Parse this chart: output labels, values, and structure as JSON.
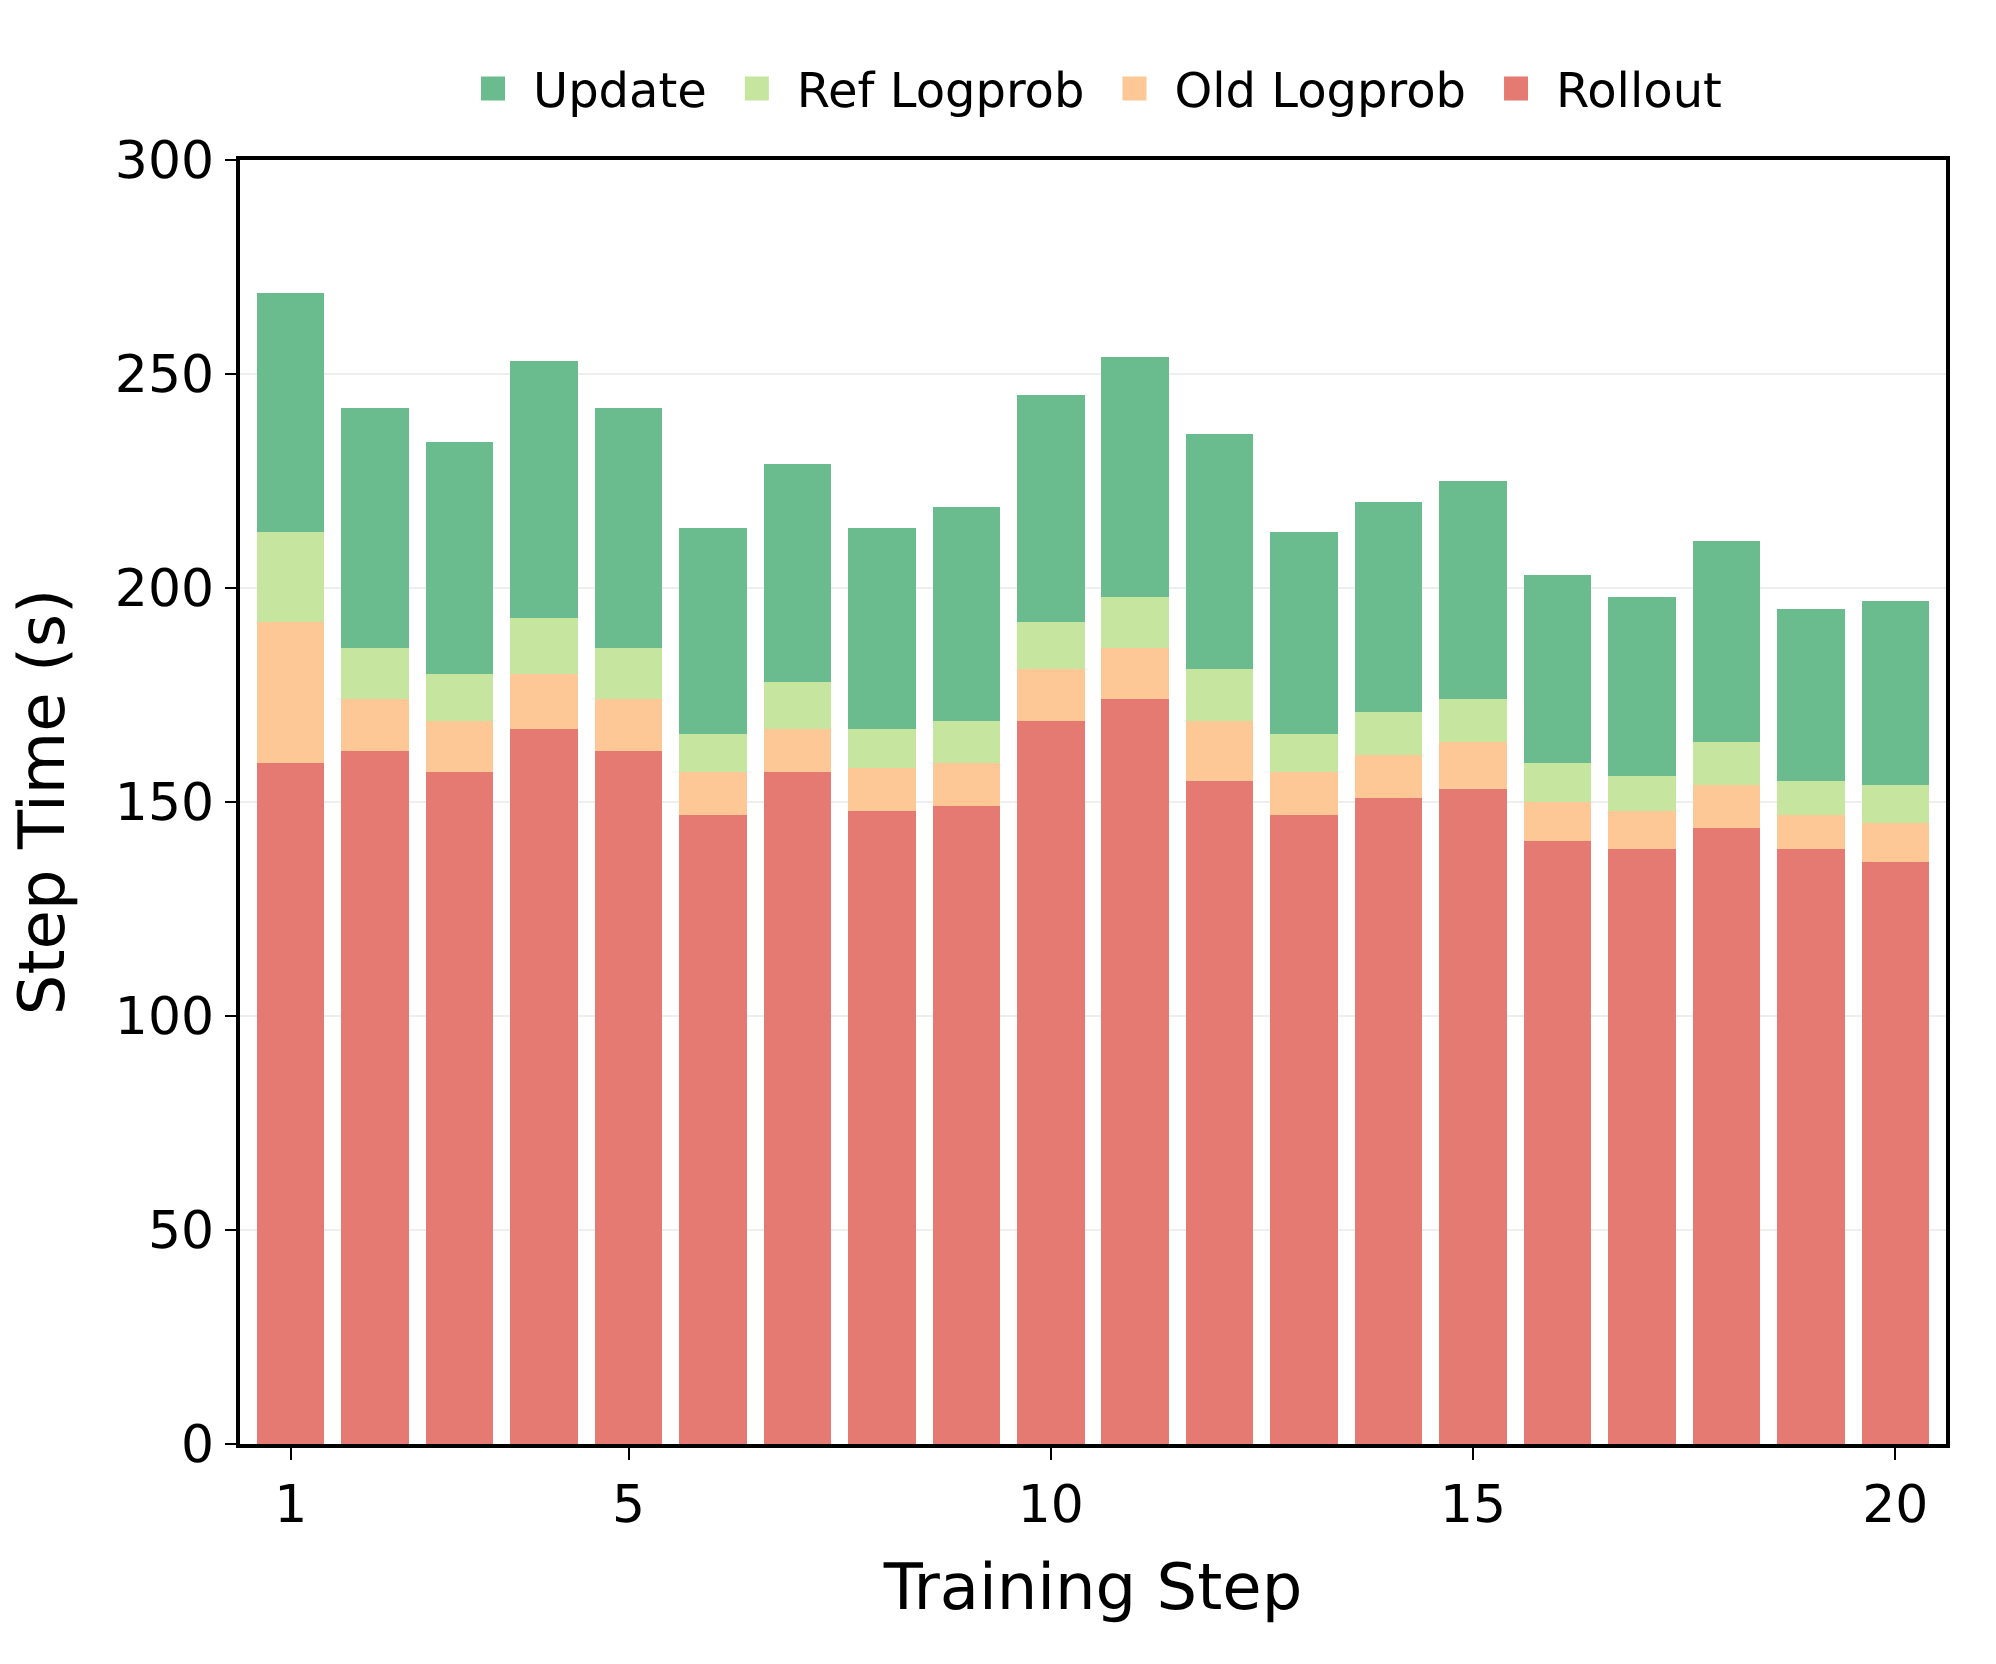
{
  "chart_data": {
    "type": "bar",
    "stacked": true,
    "xlabel": "Training Step",
    "ylabel": "Step Time (s)",
    "x": [
      1,
      2,
      3,
      4,
      5,
      6,
      7,
      8,
      9,
      10,
      11,
      12,
      13,
      14,
      15,
      16,
      17,
      18,
      19,
      20
    ],
    "xlim": [
      0.4,
      20.6
    ],
    "xticks": [
      1,
      5,
      10,
      15,
      20
    ],
    "ylim": [
      0,
      300
    ],
    "yticks": [
      0,
      50,
      100,
      150,
      200,
      250,
      300
    ],
    "grid": "y",
    "legend": "top",
    "series": [
      {
        "name": "Rollout",
        "color": "#e47a72",
        "values": [
          159,
          162,
          157,
          167,
          162,
          147,
          157,
          148,
          149,
          169,
          174,
          155,
          147,
          151,
          153,
          141,
          139,
          144,
          139,
          136
        ]
      },
      {
        "name": "Old Logprob",
        "color": "#fdc895",
        "values": [
          33,
          12,
          12,
          13,
          12,
          10,
          10,
          10,
          10,
          12,
          12,
          14,
          10,
          10,
          11,
          9,
          9,
          10,
          8,
          9
        ]
      },
      {
        "name": "Ref Logprob",
        "color": "#c6e59f",
        "values": [
          21,
          12,
          11,
          13,
          12,
          9,
          11,
          9,
          10,
          11,
          12,
          12,
          9,
          10,
          10,
          9,
          8,
          10,
          8,
          9
        ]
      },
      {
        "name": "Update",
        "color": "#6abb8d",
        "values": [
          56,
          56,
          54,
          60,
          56,
          48,
          51,
          47,
          50,
          53,
          56,
          55,
          47,
          49,
          51,
          44,
          42,
          47,
          40,
          43
        ]
      }
    ]
  }
}
